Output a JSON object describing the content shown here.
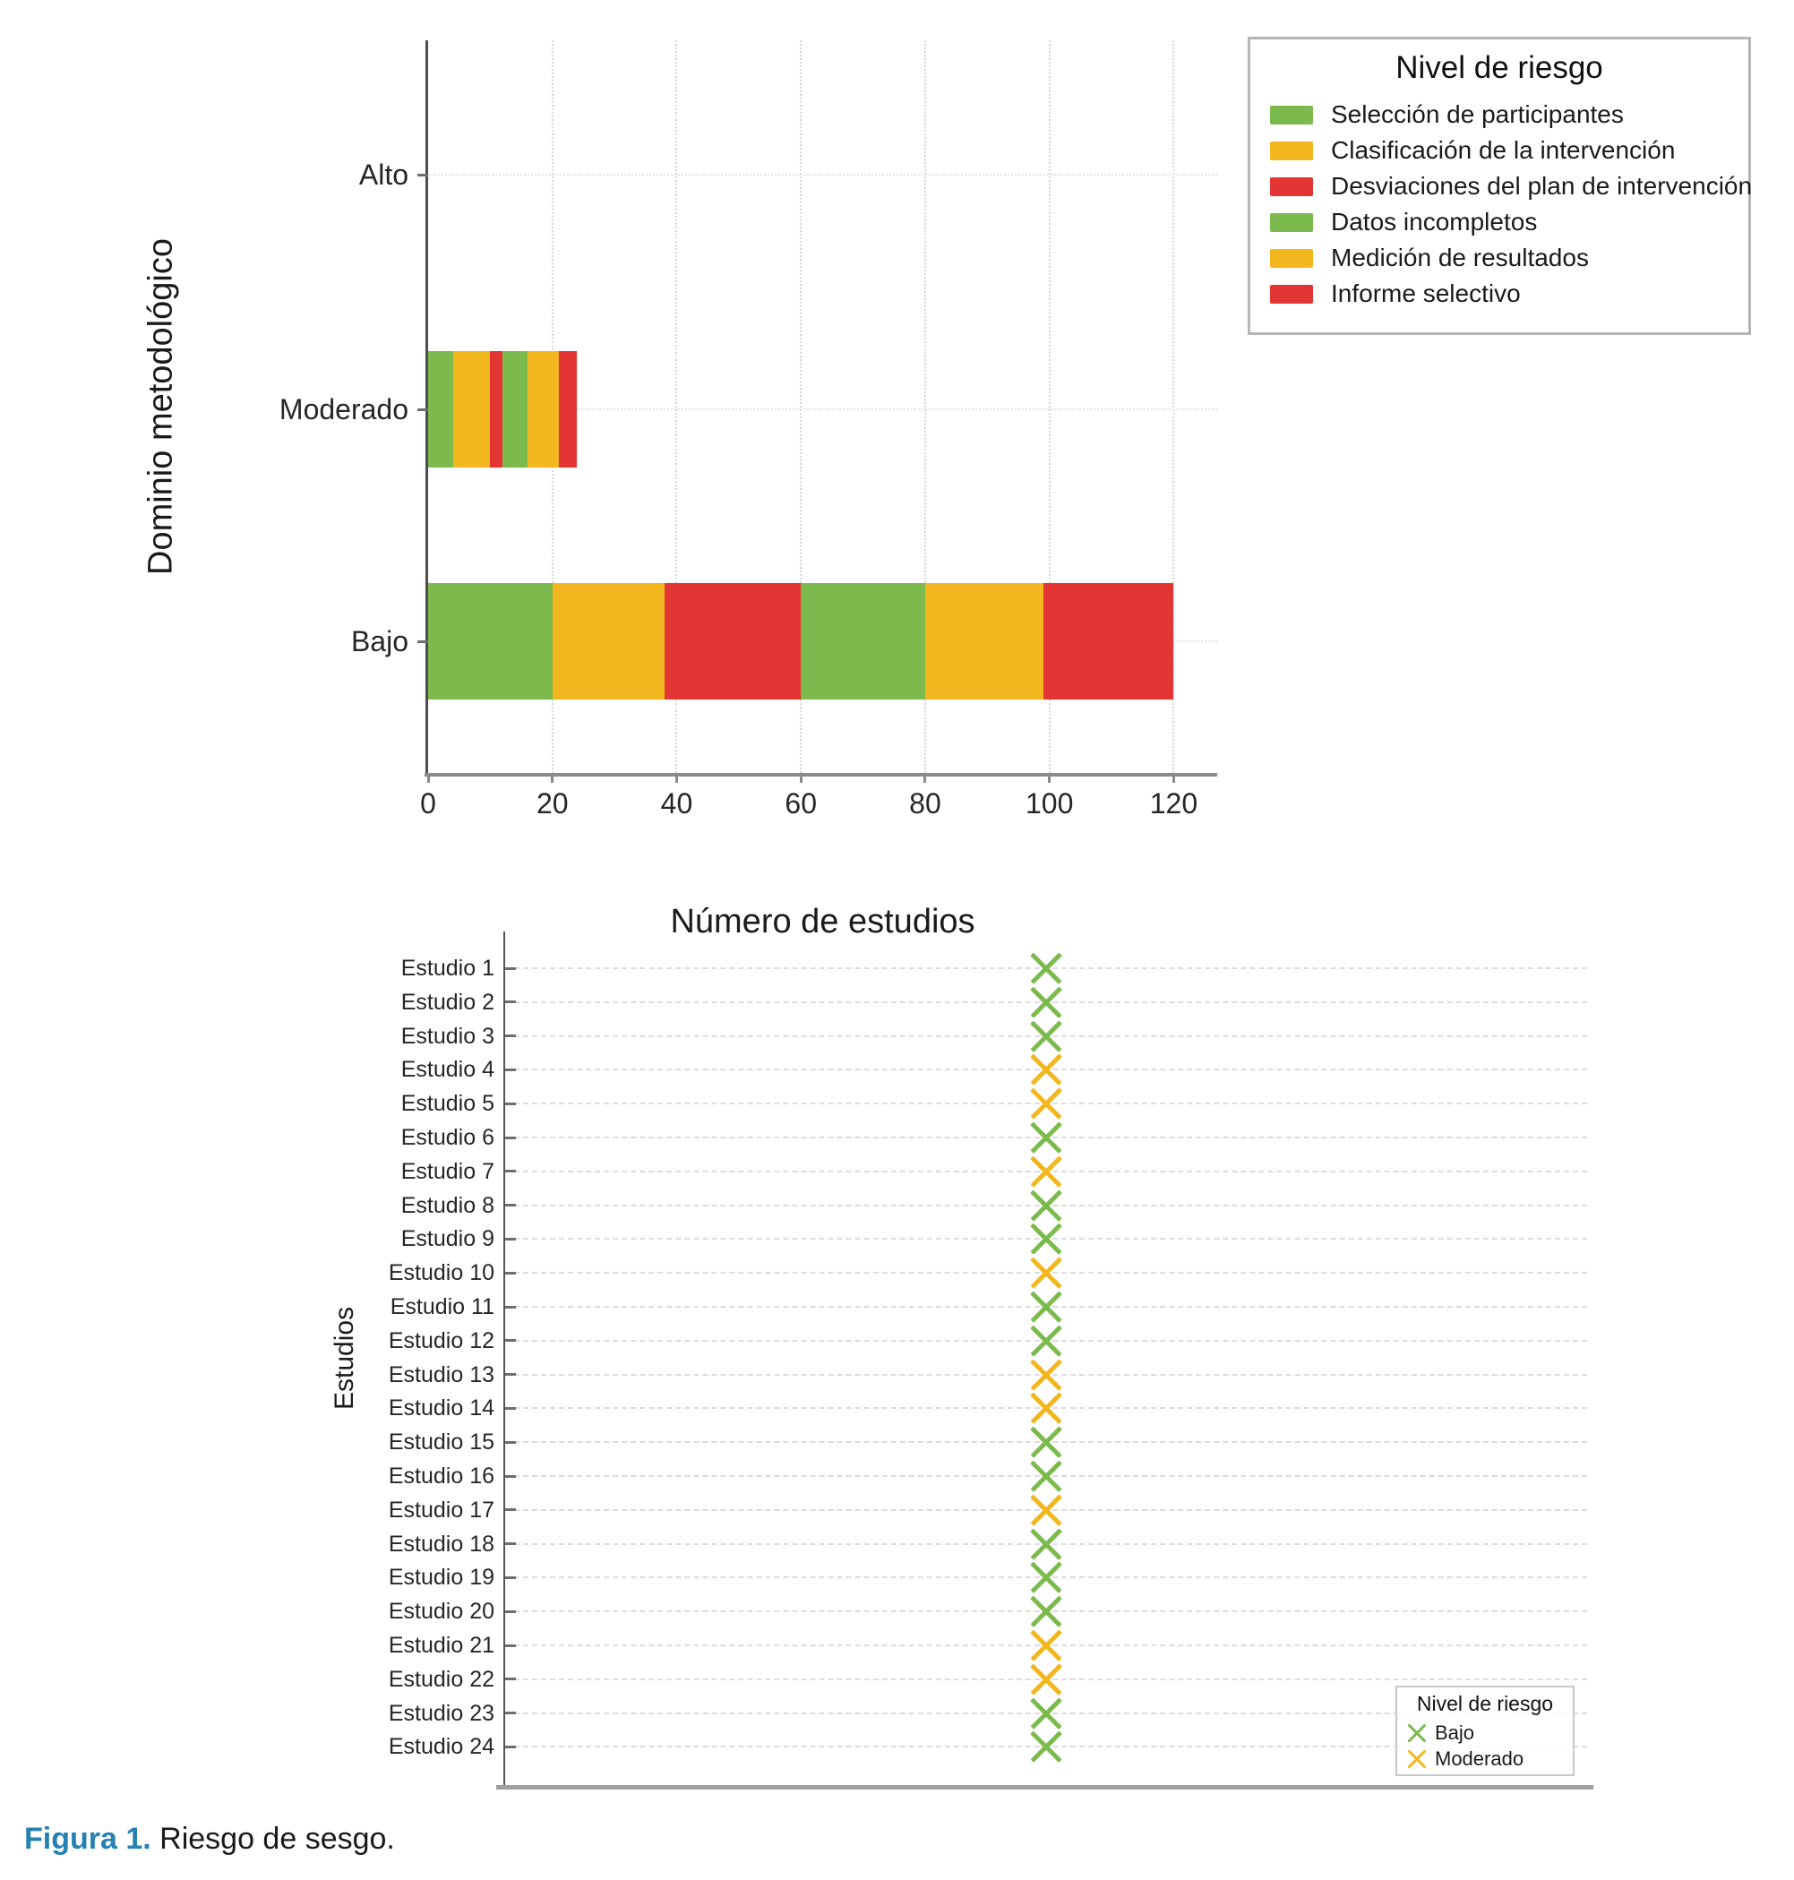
{
  "colors": {
    "green": "#7DBA4D",
    "orange": "#F2B71E",
    "red": "#E23534",
    "caption_blue": "#2581B2"
  },
  "chart_data": [
    {
      "type": "bar",
      "orientation": "horizontal",
      "stacked": true,
      "xlabel": "Número de estudios",
      "ylabel": "Dominio metodológico",
      "categories": [
        "Alto",
        "Moderado",
        "Bajo"
      ],
      "x_ticks": [
        0,
        20,
        40,
        60,
        80,
        100,
        120
      ],
      "xlim": [
        0,
        127
      ],
      "grid": true,
      "legend_title": "Nivel de riesgo",
      "legend_position": "outside upper right",
      "series": [
        {
          "name": "Selección de participantes",
          "color": "#7DBA4D",
          "values": [
            0,
            4,
            20
          ]
        },
        {
          "name": "Clasificación de la intervención",
          "color": "#F2B71E",
          "values": [
            0,
            6,
            18
          ]
        },
        {
          "name": "Desviaciones del plan de intervención",
          "color": "#E23534",
          "values": [
            0,
            2,
            22
          ]
        },
        {
          "name": "Datos incompletos",
          "color": "#7DBA4D",
          "values": [
            0,
            4,
            20
          ]
        },
        {
          "name": "Medición de resultados",
          "color": "#F2B71E",
          "values": [
            0,
            5,
            19
          ]
        },
        {
          "name": "Informe selectivo",
          "color": "#E23534",
          "values": [
            0,
            3,
            21
          ]
        }
      ]
    },
    {
      "type": "scatter",
      "marker": "x",
      "ylabel": "Estudios",
      "legend_title": "Nivel de riesgo",
      "legend_entries": [
        {
          "label": "Bajo",
          "color": "#7DBA4D"
        },
        {
          "label": "Moderado",
          "color": "#F2B71E"
        }
      ],
      "level_colors": {
        "Bajo": "#7DBA4D",
        "Moderado": "#F2B71E"
      },
      "categories": [
        "Estudio 1",
        "Estudio 2",
        "Estudio 3",
        "Estudio 4",
        "Estudio 5",
        "Estudio 6",
        "Estudio 7",
        "Estudio 8",
        "Estudio 9",
        "Estudio 10",
        "Estudio 11",
        "Estudio 12",
        "Estudio 13",
        "Estudio 14",
        "Estudio 15",
        "Estudio 16",
        "Estudio 17",
        "Estudio 18",
        "Estudio 19",
        "Estudio 20",
        "Estudio 21",
        "Estudio 22",
        "Estudio 23",
        "Estudio 24"
      ],
      "values": [
        "Bajo",
        "Bajo",
        "Bajo",
        "Moderado",
        "Moderado",
        "Bajo",
        "Moderado",
        "Bajo",
        "Bajo",
        "Moderado",
        "Bajo",
        "Bajo",
        "Moderado",
        "Moderado",
        "Bajo",
        "Bajo",
        "Moderado",
        "Bajo",
        "Bajo",
        "Bajo",
        "Moderado",
        "Moderado",
        "Bajo",
        "Bajo"
      ]
    }
  ],
  "caption": {
    "label": "Figura 1.",
    "text": " Riesgo de sesgo."
  }
}
